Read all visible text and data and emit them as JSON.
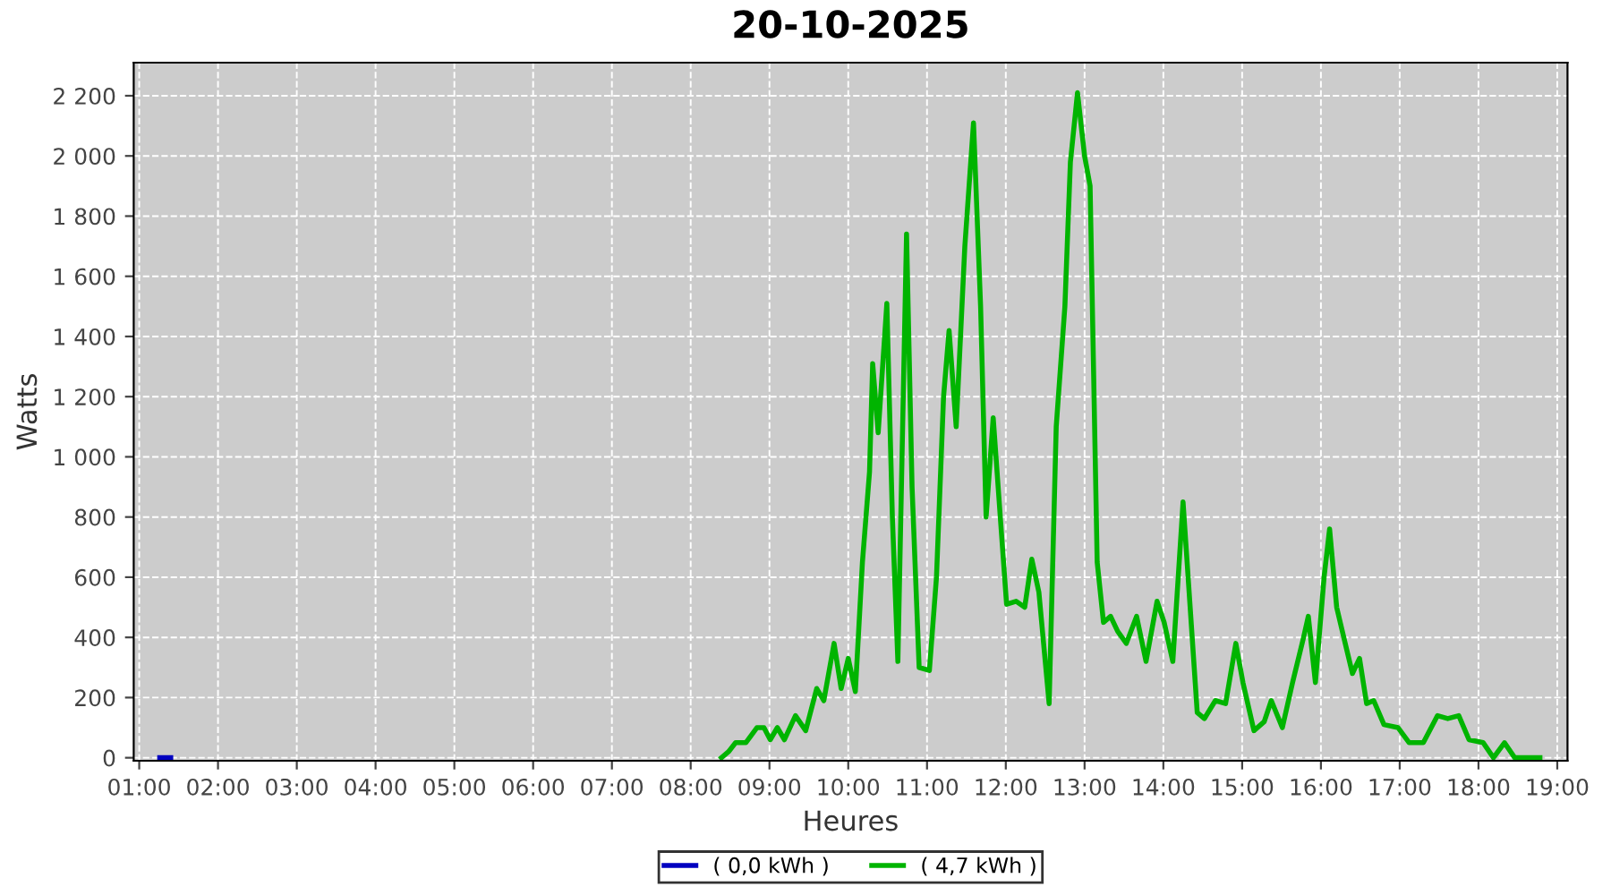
{
  "chart_data": {
    "type": "line",
    "title": "20-10-2025",
    "xlabel": "Heures",
    "ylabel": "Watts",
    "series": [
      {
        "name": "( 0,0 kWh )",
        "color": "#0000c0",
        "x": [
          1.26,
          1.4
        ],
        "values": [
          0,
          0
        ]
      },
      {
        "name": "( 4,7 kWh )",
        "color": "#00b400",
        "x": [
          8.39,
          8.48,
          8.57,
          8.7,
          8.84,
          8.93,
          9.01,
          9.1,
          9.19,
          9.33,
          9.46,
          9.6,
          9.69,
          9.82,
          9.91,
          10.0,
          10.09,
          10.18,
          10.27,
          10.31,
          10.38,
          10.49,
          10.56,
          10.63,
          10.74,
          10.81,
          10.9,
          11.03,
          11.12,
          11.21,
          11.28,
          11.37,
          11.48,
          11.59,
          11.68,
          11.75,
          11.84,
          11.93,
          12.01,
          12.13,
          12.24,
          12.33,
          12.42,
          12.55,
          12.64,
          12.75,
          12.82,
          12.91,
          13.0,
          13.07,
          13.16,
          13.24,
          13.33,
          13.42,
          13.53,
          13.66,
          13.78,
          13.92,
          14.01,
          14.12,
          14.25,
          14.34,
          14.43,
          14.52,
          14.66,
          14.79,
          14.92,
          15.01,
          15.15,
          15.28,
          15.37,
          15.51,
          15.64,
          15.78,
          15.84,
          15.93,
          16.04,
          16.11,
          16.2,
          16.29,
          16.4,
          16.49,
          16.58,
          16.67,
          16.8,
          16.98,
          17.12,
          17.3,
          17.48,
          17.61,
          17.75,
          17.88,
          18.06,
          18.19,
          18.33,
          18.46,
          18.78
        ],
        "values": [
          0,
          20,
          50,
          50,
          100,
          100,
          60,
          100,
          60,
          140,
          90,
          230,
          190,
          380,
          230,
          330,
          220,
          650,
          950,
          1310,
          1080,
          1510,
          800,
          320,
          1740,
          900,
          300,
          290,
          600,
          1200,
          1420,
          1100,
          1700,
          2110,
          1500,
          800,
          1130,
          800,
          510,
          520,
          500,
          660,
          550,
          180,
          1100,
          1500,
          1980,
          2210,
          2000,
          1900,
          650,
          450,
          470,
          420,
          380,
          470,
          320,
          520,
          450,
          320,
          850,
          500,
          150,
          130,
          190,
          180,
          380,
          250,
          90,
          120,
          190,
          100,
          250,
          400,
          470,
          250,
          600,
          760,
          500,
          400,
          280,
          330,
          180,
          190,
          110,
          100,
          50,
          50,
          140,
          130,
          140,
          60,
          50,
          0,
          50,
          0,
          0
        ]
      }
    ],
    "xlim": [
      0.93,
      19.13
    ],
    "ylim": [
      -10,
      2310
    ],
    "xticks": [
      {
        "value": 1,
        "label": "01:00"
      },
      {
        "value": 2,
        "label": "02:00"
      },
      {
        "value": 3,
        "label": "03:00"
      },
      {
        "value": 4,
        "label": "04:00"
      },
      {
        "value": 5,
        "label": "05:00"
      },
      {
        "value": 6,
        "label": "06:00"
      },
      {
        "value": 7,
        "label": "07:00"
      },
      {
        "value": 8,
        "label": "08:00"
      },
      {
        "value": 9,
        "label": "09:00"
      },
      {
        "value": 10,
        "label": "10:00"
      },
      {
        "value": 11,
        "label": "11:00"
      },
      {
        "value": 12,
        "label": "12:00"
      },
      {
        "value": 13,
        "label": "13:00"
      },
      {
        "value": 14,
        "label": "14:00"
      },
      {
        "value": 15,
        "label": "15:00"
      },
      {
        "value": 16,
        "label": "16:00"
      },
      {
        "value": 17,
        "label": "17:00"
      },
      {
        "value": 18,
        "label": "18:00"
      },
      {
        "value": 19,
        "label": "19:00"
      }
    ],
    "yticks": [
      0,
      200,
      400,
      600,
      800,
      {
        "value": 1000,
        "label": "1 000"
      },
      {
        "value": 1200,
        "label": "1 200"
      },
      {
        "value": 1400,
        "label": "1 400"
      },
      {
        "value": 1600,
        "label": "1 600"
      },
      {
        "value": 1800,
        "label": "1 800"
      },
      {
        "value": 2000,
        "label": "2 000"
      },
      {
        "value": 2200,
        "label": "2 200"
      }
    ],
    "grid": true,
    "legend": "bottom",
    "marker": "none",
    "line_style": "solid"
  }
}
